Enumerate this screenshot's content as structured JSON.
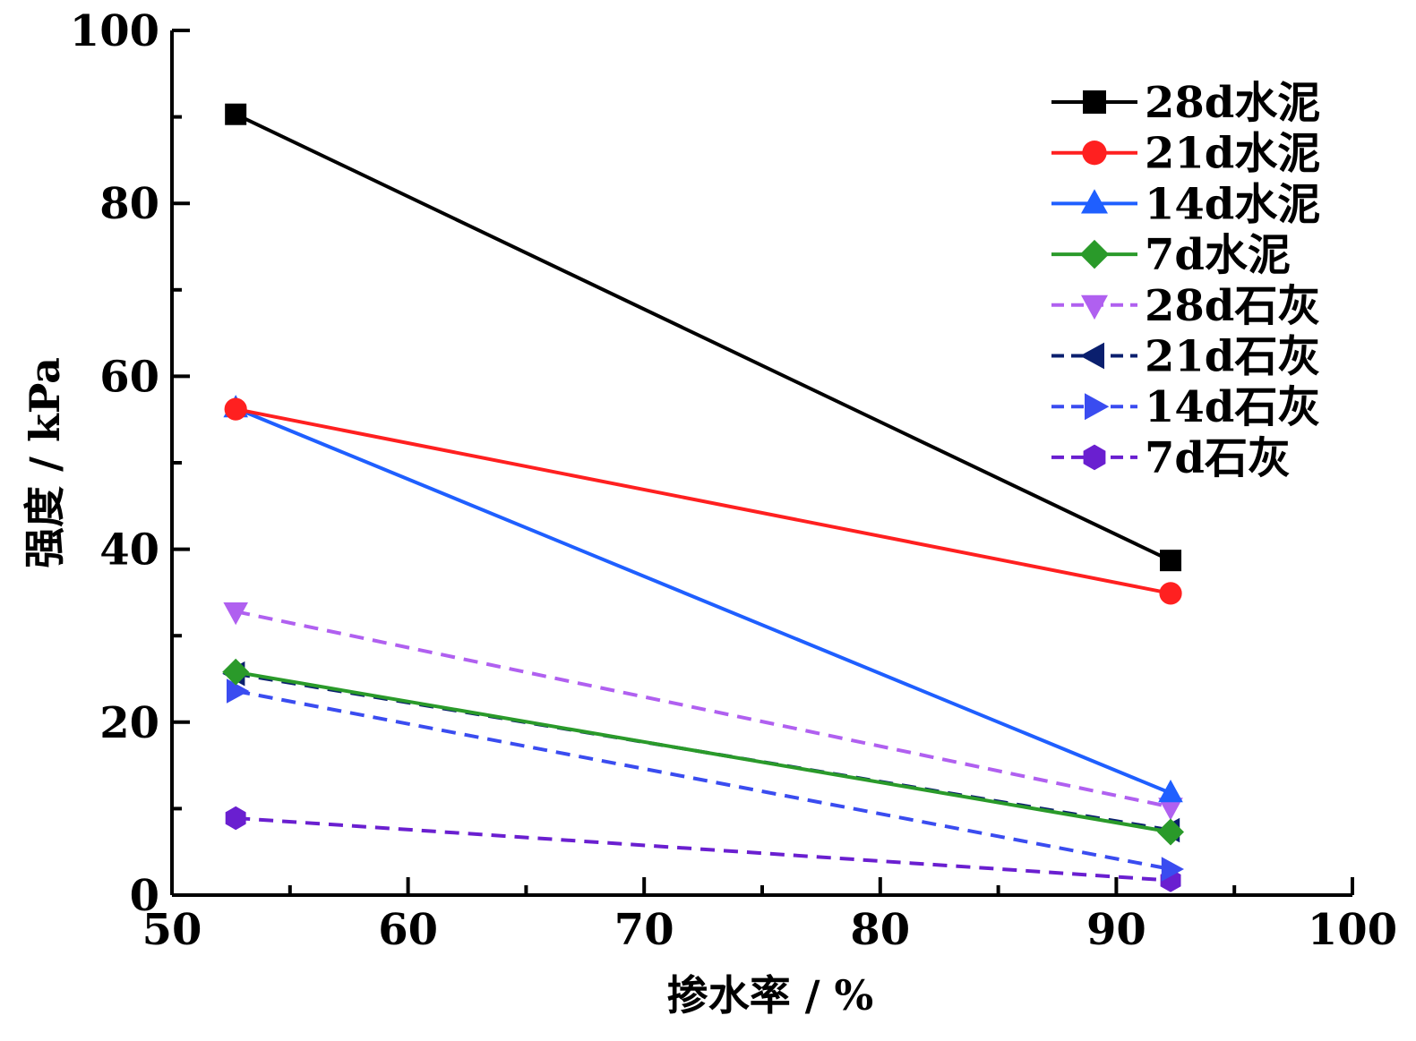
{
  "chart_data": {
    "type": "line",
    "xlabel": "掺水率 / %",
    "ylabel": "强度 / kPa",
    "xlim": [
      50,
      100
    ],
    "ylim": [
      0,
      100
    ],
    "x_ticks": [
      "50",
      "60",
      "70",
      "80",
      "90",
      "100"
    ],
    "y_ticks": [
      "0",
      "20",
      "40",
      "60",
      "80",
      "100"
    ],
    "grid": false,
    "legend_position": "top-right",
    "x": [
      52.7,
      92.3
    ],
    "series": [
      {
        "name": "28d水泥",
        "values": [
          90.3,
          38.7
        ],
        "color": "#000000",
        "marker": "square",
        "dash": false
      },
      {
        "name": "21d水泥",
        "values": [
          56.2,
          34.9
        ],
        "color": "#ff2020",
        "marker": "circle",
        "dash": false
      },
      {
        "name": "14d水泥",
        "values": [
          56.3,
          11.8
        ],
        "color": "#1f5fff",
        "marker": "triangle-up",
        "dash": false
      },
      {
        "name": "7d水泥",
        "values": [
          25.8,
          7.3
        ],
        "color": "#2a9a2a",
        "marker": "diamond",
        "dash": false
      },
      {
        "name": "28d石灰",
        "values": [
          32.8,
          10.2
        ],
        "color": "#b060f0",
        "marker": "triangle-down",
        "dash": true
      },
      {
        "name": "21d石灰",
        "values": [
          25.6,
          7.5
        ],
        "color": "#0a1f6e",
        "marker": "triangle-left",
        "dash": true
      },
      {
        "name": "14d石灰",
        "values": [
          23.6,
          3.0
        ],
        "color": "#3a4cf0",
        "marker": "triangle-right",
        "dash": true
      },
      {
        "name": "7d石灰",
        "values": [
          8.9,
          1.7
        ],
        "color": "#6a1fd0",
        "marker": "hexagon",
        "dash": true
      }
    ]
  }
}
